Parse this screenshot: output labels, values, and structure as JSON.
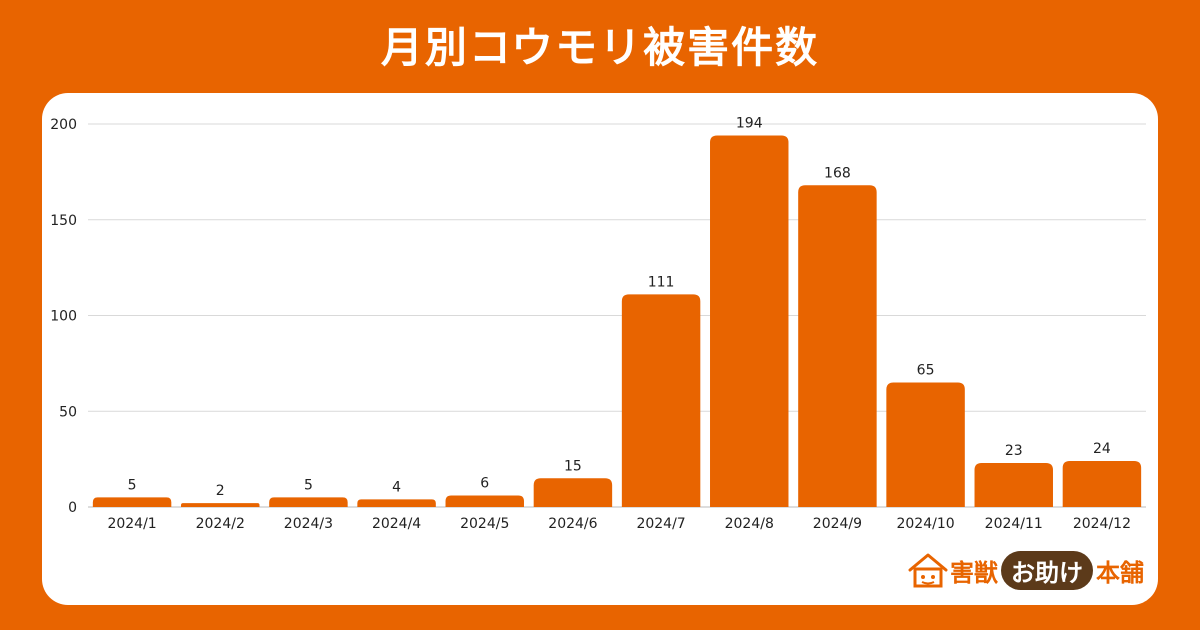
{
  "title": "月別コウモリ被害件数",
  "colors": {
    "background": "#e86400",
    "bar": "#e86400",
    "panel": "#ffffff",
    "grid": "#d9d9d9",
    "text": "#222222",
    "logo_pill": "#5c3a1a"
  },
  "chart_data": {
    "type": "bar",
    "title": "月別コウモリ被害件数",
    "xlabel": "",
    "ylabel": "",
    "categories": [
      "2024/1",
      "2024/2",
      "2024/3",
      "2024/4",
      "2024/5",
      "2024/6",
      "2024/7",
      "2024/8",
      "2024/9",
      "2024/10",
      "2024/11",
      "2024/12"
    ],
    "values": [
      5,
      2,
      5,
      4,
      6,
      15,
      111,
      194,
      168,
      65,
      23,
      24
    ],
    "ylim": [
      0,
      200
    ],
    "yticks": [
      0,
      50,
      100,
      150,
      200
    ],
    "grid": true,
    "data_labels": true
  },
  "logo": {
    "left": "害獣",
    "middle": "お助け",
    "right": "本舗"
  }
}
